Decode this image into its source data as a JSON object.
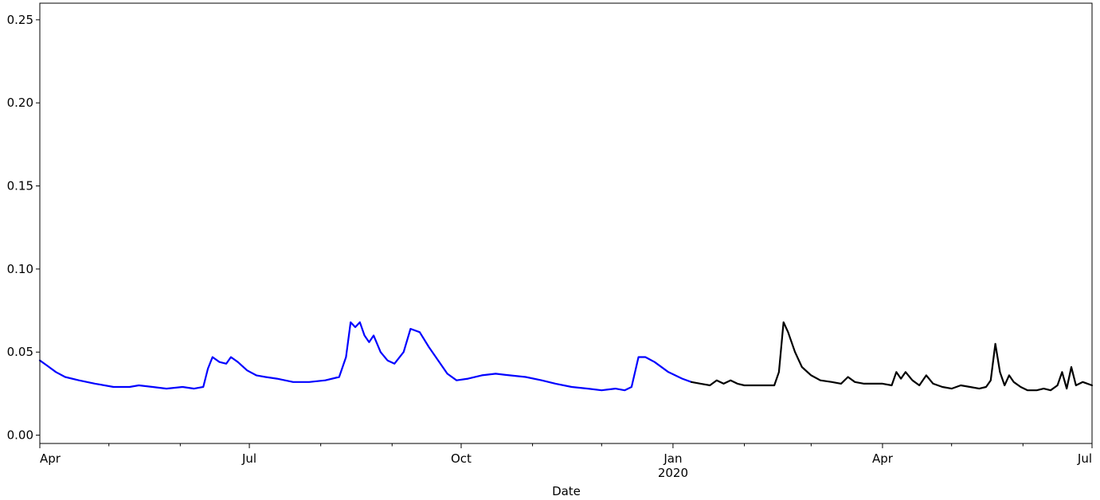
{
  "chart_data": {
    "type": "line",
    "title": "",
    "xlabel": "Date",
    "ylabel": "",
    "xlim": [
      "2019-04-01",
      "2020-07-01"
    ],
    "ylim": [
      -0.005,
      0.26
    ],
    "grid": false,
    "legend": "none",
    "y_ticks": [
      {
        "value": 0.0,
        "label": "0.00"
      },
      {
        "value": 0.05,
        "label": "0.05"
      },
      {
        "value": 0.1,
        "label": "0.10"
      },
      {
        "value": 0.15,
        "label": "0.15"
      },
      {
        "value": 0.2,
        "label": "0.20"
      },
      {
        "value": 0.25,
        "label": "0.25"
      }
    ],
    "x_major_ticks": [
      {
        "date": "2019-04-01",
        "label": "Apr"
      },
      {
        "date": "2019-07-01",
        "label": "Jul"
      },
      {
        "date": "2019-10-01",
        "label": "Oct"
      },
      {
        "date": "2020-01-01",
        "label": "Jan",
        "sublabel": "2020"
      },
      {
        "date": "2020-04-01",
        "label": "Apr"
      },
      {
        "date": "2020-07-01",
        "label": "Jul"
      }
    ],
    "x_minor_ticks": [
      "2019-05-01",
      "2019-06-01",
      "2019-08-01",
      "2019-09-01",
      "2019-11-01",
      "2019-12-01",
      "2020-02-01",
      "2020-03-01",
      "2020-05-01",
      "2020-06-01"
    ],
    "series": [
      {
        "color": "#0000ff",
        "points": [
          [
            "2019-04-01",
            0.045
          ],
          [
            "2019-04-04",
            0.042
          ],
          [
            "2019-04-08",
            0.038
          ],
          [
            "2019-04-12",
            0.035
          ],
          [
            "2019-04-18",
            0.033
          ],
          [
            "2019-04-25",
            0.031
          ],
          [
            "2019-05-03",
            0.029
          ],
          [
            "2019-05-10",
            0.029
          ],
          [
            "2019-05-14",
            0.03
          ],
          [
            "2019-05-20",
            0.029
          ],
          [
            "2019-05-26",
            0.028
          ],
          [
            "2019-06-02",
            0.029
          ],
          [
            "2019-06-07",
            0.028
          ],
          [
            "2019-06-11",
            0.029
          ],
          [
            "2019-06-13",
            0.04
          ],
          [
            "2019-06-15",
            0.047
          ],
          [
            "2019-06-18",
            0.044
          ],
          [
            "2019-06-21",
            0.043
          ],
          [
            "2019-06-23",
            0.047
          ],
          [
            "2019-06-26",
            0.044
          ],
          [
            "2019-06-30",
            0.039
          ],
          [
            "2019-07-04",
            0.036
          ],
          [
            "2019-07-08",
            0.035
          ],
          [
            "2019-07-13",
            0.034
          ],
          [
            "2019-07-20",
            0.032
          ],
          [
            "2019-07-27",
            0.032
          ],
          [
            "2019-08-03",
            0.033
          ],
          [
            "2019-08-09",
            0.035
          ],
          [
            "2019-08-12",
            0.047
          ],
          [
            "2019-08-14",
            0.068
          ],
          [
            "2019-08-16",
            0.065
          ],
          [
            "2019-08-18",
            0.068
          ],
          [
            "2019-08-20",
            0.06
          ],
          [
            "2019-08-22",
            0.056
          ],
          [
            "2019-08-24",
            0.06
          ],
          [
            "2019-08-27",
            0.05
          ],
          [
            "2019-08-30",
            0.045
          ],
          [
            "2019-09-02",
            0.043
          ],
          [
            "2019-09-06",
            0.05
          ],
          [
            "2019-09-09",
            0.064
          ],
          [
            "2019-09-13",
            0.062
          ],
          [
            "2019-09-17",
            0.053
          ],
          [
            "2019-09-21",
            0.045
          ],
          [
            "2019-09-25",
            0.037
          ],
          [
            "2019-09-29",
            0.033
          ],
          [
            "2019-10-04",
            0.034
          ],
          [
            "2019-10-10",
            0.036
          ],
          [
            "2019-10-16",
            0.037
          ],
          [
            "2019-10-22",
            0.036
          ],
          [
            "2019-10-29",
            0.035
          ],
          [
            "2019-11-05",
            0.033
          ],
          [
            "2019-11-11",
            0.031
          ],
          [
            "2019-11-18",
            0.029
          ],
          [
            "2019-11-25",
            0.028
          ],
          [
            "2019-12-01",
            0.027
          ],
          [
            "2019-12-07",
            0.028
          ],
          [
            "2019-12-11",
            0.027
          ],
          [
            "2019-12-14",
            0.029
          ],
          [
            "2019-12-17",
            0.047
          ],
          [
            "2019-12-20",
            0.047
          ],
          [
            "2019-12-24",
            0.044
          ],
          [
            "2019-12-30",
            0.038
          ],
          [
            "2020-01-05",
            0.034
          ],
          [
            "2020-01-09",
            0.032
          ]
        ]
      },
      {
        "color": "#000000",
        "points": [
          [
            "2020-01-09",
            0.032
          ],
          [
            "2020-01-13",
            0.031
          ],
          [
            "2020-01-17",
            0.03
          ],
          [
            "2020-01-20",
            0.033
          ],
          [
            "2020-01-23",
            0.031
          ],
          [
            "2020-01-26",
            0.033
          ],
          [
            "2020-01-29",
            0.031
          ],
          [
            "2020-02-01",
            0.03
          ],
          [
            "2020-02-05",
            0.03
          ],
          [
            "2020-02-08",
            0.03
          ],
          [
            "2020-02-11",
            0.03
          ],
          [
            "2020-02-14",
            0.03
          ],
          [
            "2020-02-16",
            0.038
          ],
          [
            "2020-02-18",
            0.068
          ],
          [
            "2020-02-20",
            0.062
          ],
          [
            "2020-02-23",
            0.05
          ],
          [
            "2020-02-26",
            0.041
          ],
          [
            "2020-03-01",
            0.036
          ],
          [
            "2020-03-05",
            0.033
          ],
          [
            "2020-03-10",
            0.032
          ],
          [
            "2020-03-14",
            0.031
          ],
          [
            "2020-03-17",
            0.035
          ],
          [
            "2020-03-20",
            0.032
          ],
          [
            "2020-03-24",
            0.031
          ],
          [
            "2020-03-27",
            0.031
          ],
          [
            "2020-04-01",
            0.031
          ],
          [
            "2020-04-05",
            0.03
          ],
          [
            "2020-04-07",
            0.038
          ],
          [
            "2020-04-09",
            0.034
          ],
          [
            "2020-04-11",
            0.038
          ],
          [
            "2020-04-14",
            0.033
          ],
          [
            "2020-04-17",
            0.03
          ],
          [
            "2020-04-20",
            0.036
          ],
          [
            "2020-04-23",
            0.031
          ],
          [
            "2020-04-27",
            0.029
          ],
          [
            "2020-05-01",
            0.028
          ],
          [
            "2020-05-05",
            0.03
          ],
          [
            "2020-05-09",
            0.029
          ],
          [
            "2020-05-13",
            0.028
          ],
          [
            "2020-05-16",
            0.029
          ],
          [
            "2020-05-18",
            0.033
          ],
          [
            "2020-05-20",
            0.055
          ],
          [
            "2020-05-22",
            0.038
          ],
          [
            "2020-05-24",
            0.03
          ],
          [
            "2020-05-26",
            0.036
          ],
          [
            "2020-05-28",
            0.032
          ],
          [
            "2020-05-31",
            0.029
          ],
          [
            "2020-06-03",
            0.027
          ],
          [
            "2020-06-07",
            0.027
          ],
          [
            "2020-06-10",
            0.028
          ],
          [
            "2020-06-13",
            0.027
          ],
          [
            "2020-06-16",
            0.03
          ],
          [
            "2020-06-18",
            0.038
          ],
          [
            "2020-06-20",
            0.028
          ],
          [
            "2020-06-22",
            0.041
          ],
          [
            "2020-06-24",
            0.03
          ],
          [
            "2020-06-27",
            0.032
          ],
          [
            "2020-07-01",
            0.03
          ]
        ]
      }
    ]
  }
}
